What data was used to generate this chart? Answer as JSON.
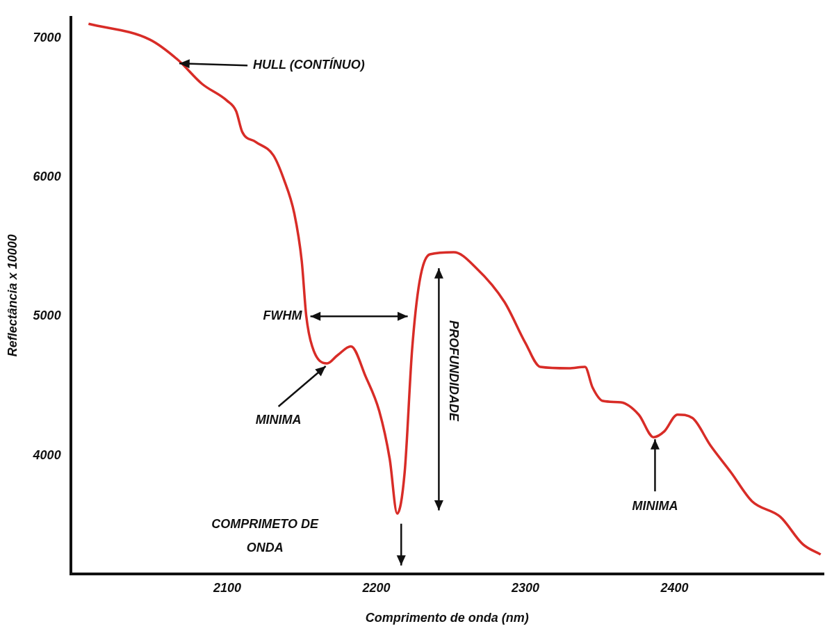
{
  "chart_data": {
    "type": "line",
    "xlabel": "Comprimento de onda (nm)",
    "ylabel": "Reflectância x 10000",
    "xlim": [
      1995,
      2500
    ],
    "xticks": [
      2100,
      2200,
      2300,
      2400
    ],
    "ylim": [
      3150,
      7150
    ],
    "yticks": [
      4000,
      5000,
      6000,
      7000
    ],
    "grid": false,
    "legend": false,
    "marker": "none",
    "line_style": "solid",
    "series": [
      {
        "color": "#d82c27",
        "x": [
          2007,
          2048,
          2067,
          2083,
          2100,
          2106,
          2110,
          2119,
          2131,
          2138,
          2145,
          2150,
          2153,
          2157,
          2167,
          2174,
          2183,
          2193,
          2202,
          2209,
          2214,
          2219,
          2224,
          2229,
          2236,
          2252,
          2267,
          2286,
          2300,
          2310,
          2329,
          2340,
          2345,
          2352,
          2364,
          2376,
          2386,
          2393,
          2402,
          2412,
          2424,
          2438,
          2452,
          2471,
          2486,
          2498
        ],
        "values": [
          7103,
          6990,
          6843,
          6672,
          6549,
          6475,
          6328,
          6255,
          6157,
          5985,
          5740,
          5397,
          5005,
          4784,
          4662,
          4721,
          4784,
          4564,
          4319,
          3975,
          3583,
          3877,
          4760,
          5250,
          5446,
          5461,
          5348,
          5103,
          4809,
          4637,
          4627,
          4637,
          4490,
          4392,
          4382,
          4294,
          4132,
          4172,
          4294,
          4270,
          4074,
          3877,
          3671,
          3559,
          3363,
          3289
        ]
      }
    ],
    "annotations": [
      {
        "text": "HULL (CONTÍNUO)",
        "x": 2067,
        "y": 6843
      },
      {
        "text": "FWHM",
        "x": 2153,
        "y": 5000
      },
      "PROFUNDIDADE",
      {
        "text": "MINIMA",
        "x": 2167,
        "y": 4662
      },
      "COMPRIMETO DE\nONDA",
      {
        "text": "MINIMA",
        "x": 2386,
        "y": 4132
      }
    ]
  }
}
